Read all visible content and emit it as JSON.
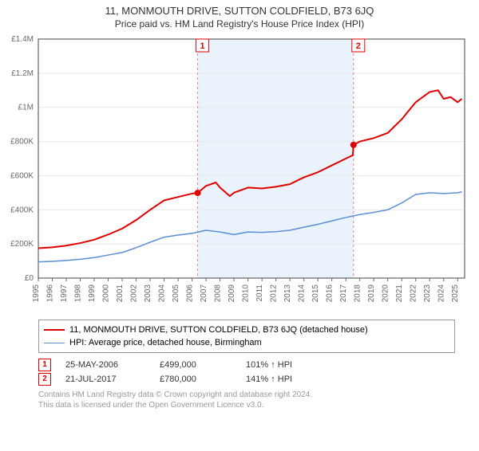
{
  "title": "11, MONMOUTH DRIVE, SUTTON COLDFIELD, B73 6JQ",
  "subtitle": "Price paid vs. HM Land Registry's House Price Index (HPI)",
  "chart": {
    "type": "line",
    "background_color": "#ffffff",
    "plot_border_color": "#444444",
    "grid_color": "#e8e8e8",
    "shaded_band": {
      "x_start": 2006.4,
      "x_end": 2017.55,
      "fill": "#eaf2fb"
    },
    "xlim": [
      1995,
      2025.5
    ],
    "ylim": [
      0,
      1400000
    ],
    "xticks": [
      1995,
      1996,
      1997,
      1998,
      1999,
      2000,
      2001,
      2002,
      2003,
      2004,
      2005,
      2006,
      2007,
      2008,
      2009,
      2010,
      2011,
      2012,
      2013,
      2014,
      2015,
      2016,
      2017,
      2018,
      2019,
      2020,
      2021,
      2022,
      2023,
      2024,
      2025
    ],
    "yticks": [
      0,
      200000,
      400000,
      600000,
      800000,
      1000000,
      1200000,
      1400000
    ],
    "ytick_labels": [
      "£0",
      "£200K",
      "£400K",
      "£600K",
      "£800K",
      "£1M",
      "£1.2M",
      "£1.4M"
    ],
    "title_fontsize": 13,
    "label_fontsize": 10,
    "series": [
      {
        "name": "property",
        "label": "11, MONMOUTH DRIVE, SUTTON COLDFIELD, B73 6JQ (detached house)",
        "color": "#e00000",
        "line_width": 2,
        "points": [
          [
            1995,
            175000
          ],
          [
            1996,
            180000
          ],
          [
            1997,
            190000
          ],
          [
            1998,
            205000
          ],
          [
            1999,
            225000
          ],
          [
            2000,
            255000
          ],
          [
            2001,
            290000
          ],
          [
            2002,
            340000
          ],
          [
            2003,
            400000
          ],
          [
            2004,
            455000
          ],
          [
            2005,
            475000
          ],
          [
            2006,
            495000
          ],
          [
            2006.4,
            499000
          ],
          [
            2007,
            540000
          ],
          [
            2007.7,
            560000
          ],
          [
            2008,
            530000
          ],
          [
            2008.7,
            480000
          ],
          [
            2009,
            500000
          ],
          [
            2010,
            530000
          ],
          [
            2011,
            525000
          ],
          [
            2012,
            535000
          ],
          [
            2013,
            550000
          ],
          [
            2014,
            590000
          ],
          [
            2015,
            620000
          ],
          [
            2016,
            660000
          ],
          [
            2017,
            700000
          ],
          [
            2017.5,
            720000
          ],
          [
            2017.55,
            780000
          ],
          [
            2018,
            800000
          ],
          [
            2019,
            820000
          ],
          [
            2020,
            850000
          ],
          [
            2021,
            930000
          ],
          [
            2022,
            1030000
          ],
          [
            2023,
            1090000
          ],
          [
            2023.6,
            1100000
          ],
          [
            2024,
            1050000
          ],
          [
            2024.5,
            1060000
          ],
          [
            2025,
            1030000
          ],
          [
            2025.3,
            1050000
          ]
        ]
      },
      {
        "name": "hpi",
        "label": "HPI: Average price, detached house, Birmingham",
        "color": "#5b8fd6",
        "line_width": 1.5,
        "points": [
          [
            1995,
            95000
          ],
          [
            1996,
            98000
          ],
          [
            1997,
            103000
          ],
          [
            1998,
            110000
          ],
          [
            1999,
            120000
          ],
          [
            2000,
            135000
          ],
          [
            2001,
            150000
          ],
          [
            2002,
            178000
          ],
          [
            2003,
            210000
          ],
          [
            2004,
            240000
          ],
          [
            2005,
            252000
          ],
          [
            2006,
            262000
          ],
          [
            2007,
            280000
          ],
          [
            2008,
            270000
          ],
          [
            2009,
            255000
          ],
          [
            2010,
            270000
          ],
          [
            2011,
            268000
          ],
          [
            2012,
            272000
          ],
          [
            2013,
            280000
          ],
          [
            2014,
            298000
          ],
          [
            2015,
            315000
          ],
          [
            2016,
            335000
          ],
          [
            2017,
            355000
          ],
          [
            2018,
            372000
          ],
          [
            2019,
            385000
          ],
          [
            2020,
            400000
          ],
          [
            2021,
            440000
          ],
          [
            2022,
            490000
          ],
          [
            2023,
            500000
          ],
          [
            2024,
            495000
          ],
          [
            2025,
            500000
          ],
          [
            2025.3,
            505000
          ]
        ]
      }
    ],
    "event_markers": [
      {
        "id": "1",
        "x": 2006.4,
        "y": 499000,
        "dot_radius": 4
      },
      {
        "id": "2",
        "x": 2017.55,
        "y": 780000,
        "dot_radius": 4
      }
    ],
    "event_line_color": "#e08080",
    "event_line_dash": "3,3"
  },
  "legend": {
    "series1": "11, MONMOUTH DRIVE, SUTTON COLDFIELD, B73 6JQ (detached house)",
    "series2": "HPI: Average price, detached house, Birmingham"
  },
  "events_table": [
    {
      "marker": "1",
      "date": "25-MAY-2006",
      "price": "£499,000",
      "pct": "101% ↑ HPI"
    },
    {
      "marker": "2",
      "date": "21-JUL-2017",
      "price": "£780,000",
      "pct": "141% ↑ HPI"
    }
  ],
  "footnote_line1": "Contains HM Land Registry data © Crown copyright and database right 2024.",
  "footnote_line2": "This data is licensed under the Open Government Licence v3.0."
}
